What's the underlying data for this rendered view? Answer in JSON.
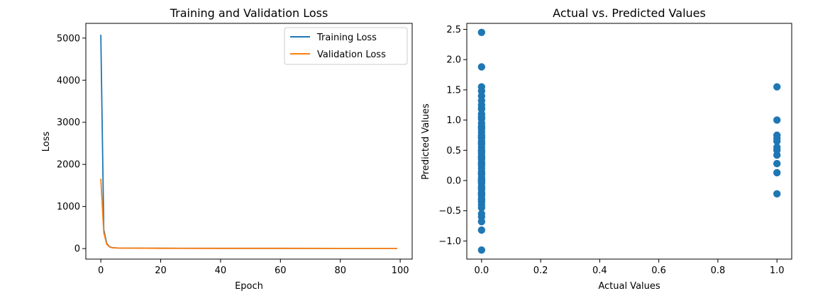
{
  "chart_data": [
    {
      "type": "line",
      "title": "Training and Validation Loss",
      "xlabel": "Epoch",
      "ylabel": "Loss",
      "xlim": [
        -5,
        104
      ],
      "ylim": [
        -250,
        5350
      ],
      "xticks": [
        0,
        20,
        40,
        60,
        80,
        100
      ],
      "xtick_labels": [
        "0",
        "20",
        "40",
        "60",
        "80",
        "100"
      ],
      "yticks": [
        0,
        1000,
        2000,
        3000,
        4000,
        5000
      ],
      "ytick_labels": [
        "0",
        "1000",
        "2000",
        "3000",
        "4000",
        "5000"
      ],
      "grid": false,
      "legend": "top-right",
      "series": [
        {
          "name": "Training Loss",
          "color": "#1f77b4",
          "x": [
            0,
            1,
            2,
            3,
            4,
            6,
            10,
            20,
            40,
            60,
            80,
            99
          ],
          "y": [
            5080,
            450,
            120,
            40,
            20,
            12,
            10,
            8,
            6,
            5,
            4,
            4
          ]
        },
        {
          "name": "Validation Loss",
          "color": "#ff7f0e",
          "x": [
            0,
            1,
            2,
            3,
            4,
            6,
            10,
            20,
            40,
            60,
            80,
            99
          ],
          "y": [
            1660,
            380,
            100,
            35,
            18,
            12,
            10,
            8,
            6,
            5,
            4,
            4
          ]
        }
      ]
    },
    {
      "type": "scatter",
      "title": "Actual vs. Predicted Values",
      "xlabel": "Actual Values",
      "ylabel": "Predicted Values",
      "xlim": [
        -0.05,
        1.05
      ],
      "ylim": [
        -1.3,
        2.6
      ],
      "xticks": [
        0.0,
        0.2,
        0.4,
        0.6,
        0.8,
        1.0
      ],
      "xtick_labels": [
        "0.0",
        "0.2",
        "0.4",
        "0.6",
        "0.8",
        "1.0"
      ],
      "yticks": [
        -1.0,
        -0.5,
        0.0,
        0.5,
        1.0,
        1.5,
        2.0,
        2.5
      ],
      "ytick_labels": [
        "−1.0",
        "−0.5",
        "0.0",
        "0.5",
        "1.0",
        "1.5",
        "2.0",
        "2.5"
      ],
      "grid": false,
      "color": "#1f77b4",
      "series": [
        {
          "x": [
            0,
            0,
            0,
            0,
            0,
            0,
            0,
            0,
            0,
            0,
            0,
            0,
            0,
            0,
            0,
            0,
            0,
            0,
            0,
            0,
            0,
            0,
            0,
            0,
            0,
            0,
            0,
            0,
            0,
            0,
            0,
            0,
            0,
            0,
            0,
            0,
            0,
            0,
            0,
            0,
            0,
            0,
            0,
            0,
            0,
            0,
            0,
            0,
            0,
            0,
            0,
            0,
            0,
            0,
            0,
            0,
            0,
            0,
            1,
            1,
            1,
            1,
            1,
            1,
            1,
            1,
            1,
            1,
            1
          ],
          "y": [
            2.45,
            1.88,
            1.55,
            1.48,
            1.4,
            1.32,
            1.25,
            1.18,
            1.1,
            1.02,
            0.95,
            0.9,
            0.85,
            0.8,
            0.75,
            0.7,
            0.65,
            0.6,
            0.55,
            0.5,
            0.45,
            0.4,
            0.35,
            0.3,
            0.25,
            0.2,
            0.15,
            0.1,
            0.05,
            0.0,
            -0.05,
            -0.1,
            -0.15,
            -0.2,
            -0.25,
            -0.3,
            -0.35,
            -0.4,
            -0.55,
            -0.6,
            -0.68,
            -0.82,
            -1.15,
            1.2,
            1.05,
            0.88,
            0.62,
            0.48,
            0.28,
            0.12,
            -0.02,
            -0.12,
            -0.22,
            -0.32,
            -0.45,
            0.72,
            0.38,
            0.02,
            1.55,
            1.0,
            0.75,
            0.7,
            0.55,
            0.5,
            0.42,
            0.28,
            0.13,
            -0.22,
            0.65
          ]
        }
      ]
    }
  ]
}
